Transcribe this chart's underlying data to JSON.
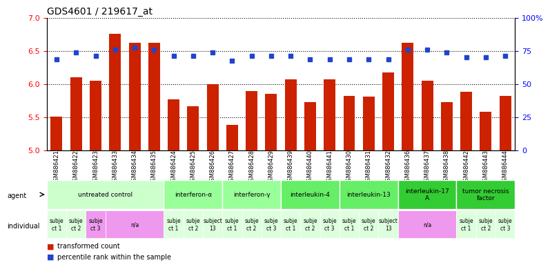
{
  "title": "GDS4601 / 219617_at",
  "samples": [
    "GSM886421",
    "GSM886422",
    "GSM886423",
    "GSM886433",
    "GSM886434",
    "GSM886435",
    "GSM886424",
    "GSM886425",
    "GSM886426",
    "GSM886427",
    "GSM886428",
    "GSM886429",
    "GSM886439",
    "GSM886440",
    "GSM886441",
    "GSM886430",
    "GSM886431",
    "GSM886432",
    "GSM886436",
    "GSM886437",
    "GSM886438",
    "GSM886442",
    "GSM886443",
    "GSM886444"
  ],
  "bar_values": [
    5.51,
    6.1,
    6.05,
    6.76,
    6.62,
    6.62,
    5.77,
    5.66,
    6.0,
    5.38,
    5.89,
    5.85,
    6.07,
    5.72,
    6.07,
    5.82,
    5.81,
    6.17,
    6.62,
    6.05,
    5.72,
    5.88,
    5.58,
    5.82
  ],
  "percentile_values": [
    6.37,
    6.47,
    6.42,
    6.52,
    6.55,
    6.52,
    6.42,
    6.42,
    6.47,
    6.35,
    6.42,
    6.42,
    6.42,
    6.37,
    6.37,
    6.37,
    6.37,
    6.37,
    6.52,
    6.52,
    6.47,
    6.4,
    6.4,
    6.42
  ],
  "ylim_left": [
    5.0,
    7.0
  ],
  "ylim_right": [
    0,
    100
  ],
  "yticks_left": [
    5.0,
    5.5,
    6.0,
    6.5,
    7.0
  ],
  "yticks_right": [
    0,
    25,
    50,
    75,
    100
  ],
  "ytick_labels_right": [
    "0",
    "25",
    "50",
    "75",
    "100%"
  ],
  "bar_color": "#cc2200",
  "dot_color": "#2244cc",
  "agent_groups": [
    {
      "label": "untreated control",
      "start": 0,
      "end": 6,
      "color": "#ccffcc"
    },
    {
      "label": "interferon-α",
      "start": 6,
      "end": 9,
      "color": "#99ff99"
    },
    {
      "label": "interferon-γ",
      "start": 9,
      "end": 12,
      "color": "#99ff99"
    },
    {
      "label": "interleukin-4",
      "start": 12,
      "end": 15,
      "color": "#66ee66"
    },
    {
      "label": "interleukin-13",
      "start": 15,
      "end": 18,
      "color": "#66ee66"
    },
    {
      "label": "interleukin-17\nA",
      "start": 18,
      "end": 21,
      "color": "#33cc33"
    },
    {
      "label": "tumor necrosis\nfactor",
      "start": 21,
      "end": 24,
      "color": "#33cc33"
    }
  ],
  "individual_groups": [
    {
      "label": "subje\nct 1",
      "start": 0,
      "end": 1,
      "color": "#ddffdd"
    },
    {
      "label": "subje\nct 2",
      "start": 1,
      "end": 2,
      "color": "#ddffdd"
    },
    {
      "label": "subje\nct 3",
      "start": 2,
      "end": 3,
      "color": "#ee99ee"
    },
    {
      "label": "n/a",
      "start": 3,
      "end": 6,
      "color": "#ee99ee"
    },
    {
      "label": "subje\nct 1",
      "start": 6,
      "end": 7,
      "color": "#ddffdd"
    },
    {
      "label": "subje\nct 2",
      "start": 7,
      "end": 8,
      "color": "#ddffdd"
    },
    {
      "label": "subject\n13",
      "start": 8,
      "end": 9,
      "color": "#ddffdd"
    },
    {
      "label": "subje\nct 1",
      "start": 9,
      "end": 10,
      "color": "#ddffdd"
    },
    {
      "label": "subje\nct 2",
      "start": 10,
      "end": 11,
      "color": "#ddffdd"
    },
    {
      "label": "subje\nct 3",
      "start": 11,
      "end": 12,
      "color": "#ddffdd"
    },
    {
      "label": "subje\nct 1",
      "start": 12,
      "end": 13,
      "color": "#ddffdd"
    },
    {
      "label": "subje\nct 2",
      "start": 13,
      "end": 14,
      "color": "#ddffdd"
    },
    {
      "label": "subje\nct 3",
      "start": 14,
      "end": 15,
      "color": "#ddffdd"
    },
    {
      "label": "subje\nct 1",
      "start": 15,
      "end": 16,
      "color": "#ddffdd"
    },
    {
      "label": "subje\nct 2",
      "start": 16,
      "end": 17,
      "color": "#ddffdd"
    },
    {
      "label": "subject\n13",
      "start": 17,
      "end": 18,
      "color": "#ddffdd"
    },
    {
      "label": "n/a",
      "start": 18,
      "end": 21,
      "color": "#ee99ee"
    },
    {
      "label": "subje\nct 1",
      "start": 21,
      "end": 22,
      "color": "#ddffdd"
    },
    {
      "label": "subje\nct 2",
      "start": 22,
      "end": 23,
      "color": "#ddffdd"
    },
    {
      "label": "subje\nct 3",
      "start": 23,
      "end": 24,
      "color": "#ddffdd"
    }
  ]
}
